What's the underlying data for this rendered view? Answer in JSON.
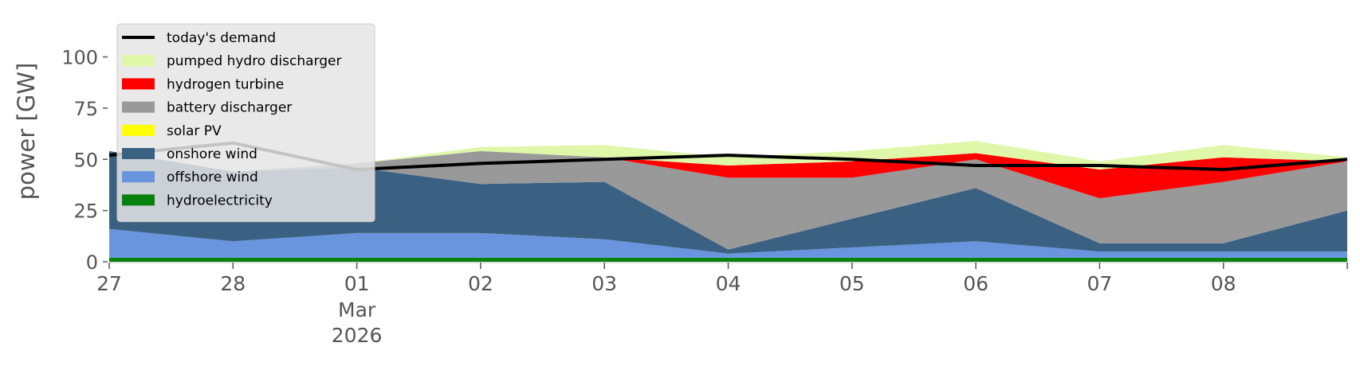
{
  "chart_data": {
    "type": "area",
    "title": "",
    "xlabel": "",
    "ylabel": "power [GW]",
    "ylim": [
      0,
      120
    ],
    "xlim": [
      "2026-02-27",
      "2026-03-09"
    ],
    "grid": false,
    "legend_position": "upper-left",
    "yticks": [
      0,
      25,
      50,
      75,
      100
    ],
    "xticks": [
      {
        "date": "2026-02-27",
        "label": "27"
      },
      {
        "date": "2026-02-28",
        "label": "28"
      },
      {
        "date": "2026-03-01",
        "label": "01",
        "sublabels": [
          "Mar",
          "2026"
        ]
      },
      {
        "date": "2026-03-02",
        "label": "02"
      },
      {
        "date": "2026-03-03",
        "label": "03"
      },
      {
        "date": "2026-03-04",
        "label": "04"
      },
      {
        "date": "2026-03-05",
        "label": "05"
      },
      {
        "date": "2026-03-06",
        "label": "06"
      },
      {
        "date": "2026-03-07",
        "label": "07"
      },
      {
        "date": "2026-03-08",
        "label": "08"
      }
    ],
    "legend": [
      {
        "name": "today's demand",
        "color": "#000000",
        "kind": "line"
      },
      {
        "name": "pumped hydro discharger",
        "color": "#dff7a8",
        "kind": "area"
      },
      {
        "name": "hydrogen turbine",
        "color": "#ff0000",
        "kind": "area"
      },
      {
        "name": "battery discharger",
        "color": "#999999",
        "kind": "area"
      },
      {
        "name": "solar PV",
        "color": "#ffff00",
        "kind": "area"
      },
      {
        "name": "onshore wind",
        "color": "#3b6182",
        "kind": "area"
      },
      {
        "name": "offshore wind",
        "color": "#6895dd",
        "kind": "area"
      },
      {
        "name": "hydroelectricity",
        "color": "#08820f",
        "kind": "area"
      }
    ],
    "x": [
      "2026-02-27",
      "2026-02-28",
      "2026-03-01",
      "2026-03-02",
      "2026-03-03",
      "2026-03-04",
      "2026-03-05",
      "2026-03-06",
      "2026-03-07",
      "2026-03-08",
      "2026-03-09"
    ],
    "series": [
      {
        "name": "hydroelectricity",
        "values": [
          2,
          2,
          2,
          2,
          2,
          2,
          2,
          2,
          2,
          2,
          2
        ]
      },
      {
        "name": "offshore wind",
        "values": [
          14,
          8,
          12,
          12,
          9,
          2,
          5,
          8,
          3,
          3,
          3
        ]
      },
      {
        "name": "onshore wind",
        "values": [
          38,
          34,
          32,
          24,
          28,
          2,
          14,
          26,
          4,
          4,
          20
        ]
      },
      {
        "name": "solar PV",
        "values": [
          0,
          0,
          0,
          0,
          0,
          0,
          0,
          0,
          0,
          0,
          0
        ]
      },
      {
        "name": "battery discharger",
        "values": [
          0,
          0,
          2,
          16,
          12,
          35,
          20,
          14,
          22,
          30,
          24
        ]
      },
      {
        "name": "hydrogen turbine",
        "values": [
          0,
          0,
          0,
          0,
          0,
          6,
          8,
          3,
          14,
          12,
          0
        ]
      },
      {
        "name": "pumped hydro discharger",
        "values": [
          0,
          0,
          0,
          2,
          6,
          4,
          5,
          6,
          4,
          6,
          2
        ]
      },
      {
        "name": "today's demand",
        "values": [
          52,
          58,
          45,
          48,
          50,
          52,
          50,
          47,
          47,
          45,
          50
        ]
      }
    ]
  }
}
